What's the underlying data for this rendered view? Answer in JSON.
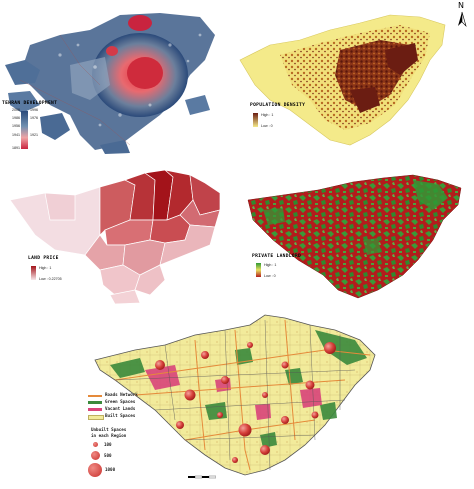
{
  "north_label": "N",
  "dev_map": {
    "title": "TEHRAN DEVELOPMENT",
    "years": [
      "2006",
      "1996",
      "1986",
      "1976",
      "1956",
      "1941",
      "1921",
      "1891"
    ],
    "colors": {
      "early": "#c9243f",
      "mid": "#f0a4a6",
      "late": "#2b4a7a",
      "recent": "#6f8fb0"
    }
  },
  "pop_map": {
    "title": "POPULATION DENSITY",
    "high": "High : 1",
    "low": "Low : 0",
    "colors": {
      "high": "#6b1d12",
      "low": "#f4ea8a"
    }
  },
  "land_price_map": {
    "title": "LAND PRICE",
    "high": "High : 1",
    "low": "Low : 0.22705",
    "colors": {
      "high": "#a3131a",
      "low": "#f7e7ea"
    }
  },
  "landlord_map": {
    "title": "PRIVATE LANDLORD",
    "high": "High : 1",
    "low": "Low : 0",
    "colors": {
      "high": "#2f9a35",
      "low": "#b31c1c"
    }
  },
  "main_map": {
    "legend": [
      {
        "label": "Roads Network",
        "color": "#e58a3a"
      },
      {
        "label": "Green Spaces",
        "color": "#3b8a3c"
      },
      {
        "label": "Vacant Lands",
        "color": "#d9447a"
      },
      {
        "label": "Built Spaces",
        "color": "#f2eb9b"
      }
    ],
    "unbuilt_title_1": "Unbuilt Spaces",
    "unbuilt_title_2": "in each Region",
    "circle_sizes": [
      "100",
      "500",
      "1000"
    ]
  }
}
